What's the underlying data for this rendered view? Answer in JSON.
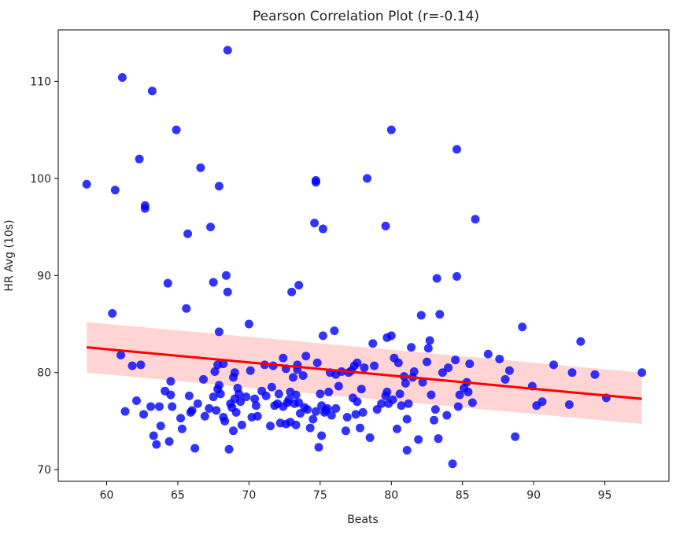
{
  "chart_data": {
    "type": "scatter",
    "title": "Pearson Correlation Plot (r=-0.14)",
    "xlabel": "Beats",
    "ylabel": "HR Avg (10s)",
    "xlim": [
      56.6,
      99.5
    ],
    "ylim": [
      68.8,
      115.3
    ],
    "xticks": [
      60,
      65,
      70,
      75,
      80,
      85,
      90,
      95
    ],
    "yticks": [
      70,
      80,
      90,
      100,
      110
    ],
    "grid": false,
    "legend": "none",
    "colors": {
      "points": "#0000ff",
      "fit_line": "#ff0000",
      "ci_band": "#ffcccc"
    },
    "regression": {
      "x": [
        58.6,
        97.6
      ],
      "y": [
        82.6,
        77.3
      ],
      "ci_upper": [
        85.2,
        80.0
      ],
      "ci_lower": [
        80.0,
        74.7
      ]
    },
    "points": [
      [
        58.6,
        99.4
      ],
      [
        60.4,
        86.1
      ],
      [
        60.6,
        98.8
      ],
      [
        61.0,
        81.8
      ],
      [
        61.1,
        110.4
      ],
      [
        61.3,
        76.0
      ],
      [
        61.8,
        80.7
      ],
      [
        62.1,
        77.1
      ],
      [
        62.3,
        102.0
      ],
      [
        62.4,
        80.8
      ],
      [
        62.6,
        75.7
      ],
      [
        62.7,
        97.2
      ],
      [
        62.7,
        96.9
      ],
      [
        63.1,
        76.5
      ],
      [
        63.2,
        109.0
      ],
      [
        63.3,
        73.5
      ],
      [
        63.5,
        72.6
      ],
      [
        63.7,
        76.5
      ],
      [
        63.8,
        74.5
      ],
      [
        64.1,
        78.1
      ],
      [
        64.3,
        89.2
      ],
      [
        64.4,
        72.9
      ],
      [
        64.5,
        79.1
      ],
      [
        64.5,
        77.7
      ],
      [
        64.6,
        76.5
      ],
      [
        64.9,
        105.0
      ],
      [
        65.2,
        75.3
      ],
      [
        65.3,
        74.2
      ],
      [
        65.6,
        86.6
      ],
      [
        65.7,
        94.3
      ],
      [
        65.8,
        77.6
      ],
      [
        65.9,
        75.9
      ],
      [
        66.0,
        76.1
      ],
      [
        66.2,
        72.2
      ],
      [
        66.4,
        76.8
      ],
      [
        66.6,
        101.1
      ],
      [
        66.8,
        79.3
      ],
      [
        66.9,
        75.5
      ],
      [
        67.2,
        76.3
      ],
      [
        67.3,
        95.0
      ],
      [
        67.5,
        89.3
      ],
      [
        67.5,
        77.5
      ],
      [
        67.6,
        80.1
      ],
      [
        67.7,
        76.1
      ],
      [
        67.8,
        78.3
      ],
      [
        67.8,
        80.8
      ],
      [
        67.9,
        84.2
      ],
      [
        67.9,
        78.7
      ],
      [
        67.9,
        99.2
      ],
      [
        68.0,
        77.8
      ],
      [
        68.2,
        80.9
      ],
      [
        68.2,
        75.4
      ],
      [
        68.3,
        75.0
      ],
      [
        68.4,
        90.0
      ],
      [
        68.5,
        88.3
      ],
      [
        68.5,
        113.2
      ],
      [
        68.6,
        72.1
      ],
      [
        68.7,
        76.8
      ],
      [
        68.8,
        76.4
      ],
      [
        68.9,
        74.0
      ],
      [
        68.9,
        79.5
      ],
      [
        69.0,
        77.3
      ],
      [
        69.0,
        80.0
      ],
      [
        69.1,
        75.9
      ],
      [
        69.2,
        78.4
      ],
      [
        69.3,
        77.8
      ],
      [
        69.4,
        77.0
      ],
      [
        69.5,
        74.6
      ],
      [
        69.8,
        77.5
      ],
      [
        70.0,
        85.0
      ],
      [
        70.1,
        80.2
      ],
      [
        70.2,
        75.4
      ],
      [
        70.4,
        77.3
      ],
      [
        70.5,
        76.6
      ],
      [
        70.6,
        75.5
      ],
      [
        70.9,
        78.1
      ],
      [
        71.1,
        80.8
      ],
      [
        71.2,
        77.6
      ],
      [
        71.5,
        74.5
      ],
      [
        71.6,
        78.5
      ],
      [
        71.7,
        80.7
      ],
      [
        71.8,
        76.6
      ],
      [
        72.0,
        76.8
      ],
      [
        72.1,
        77.8
      ],
      [
        72.2,
        74.8
      ],
      [
        72.4,
        81.5
      ],
      [
        72.4,
        76.5
      ],
      [
        72.6,
        80.4
      ],
      [
        72.6,
        74.7
      ],
      [
        72.7,
        76.9
      ],
      [
        72.8,
        77.2
      ],
      [
        72.9,
        78.0
      ],
      [
        72.9,
        74.9
      ],
      [
        73.0,
        88.3
      ],
      [
        73.1,
        79.5
      ],
      [
        73.2,
        76.8
      ],
      [
        73.3,
        77.7
      ],
      [
        73.3,
        74.6
      ],
      [
        73.4,
        80.3
      ],
      [
        73.4,
        80.8
      ],
      [
        73.5,
        89.0
      ],
      [
        73.5,
        76.9
      ],
      [
        73.6,
        75.8
      ],
      [
        73.8,
        79.7
      ],
      [
        73.9,
        76.4
      ],
      [
        74.0,
        81.7
      ],
      [
        74.1,
        76.2
      ],
      [
        74.3,
        74.3
      ],
      [
        74.5,
        75.2
      ],
      [
        74.6,
        95.4
      ],
      [
        74.7,
        76.0
      ],
      [
        74.7,
        99.8
      ],
      [
        74.7,
        99.6
      ],
      [
        74.8,
        81.0
      ],
      [
        74.9,
        72.3
      ],
      [
        75.0,
        77.8
      ],
      [
        75.1,
        76.6
      ],
      [
        75.1,
        73.5
      ],
      [
        75.2,
        83.8
      ],
      [
        75.2,
        94.8
      ],
      [
        75.3,
        75.9
      ],
      [
        75.4,
        76.1
      ],
      [
        75.5,
        76.3
      ],
      [
        75.6,
        78.0
      ],
      [
        75.7,
        80.0
      ],
      [
        75.8,
        75.6
      ],
      [
        76.0,
        84.3
      ],
      [
        76.1,
        76.3
      ],
      [
        76.1,
        79.8
      ],
      [
        76.3,
        78.6
      ],
      [
        76.5,
        80.1
      ],
      [
        76.8,
        74.0
      ],
      [
        76.9,
        75.4
      ],
      [
        77.0,
        80.0
      ],
      [
        77.2,
        80.2
      ],
      [
        77.3,
        77.4
      ],
      [
        77.4,
        80.7
      ],
      [
        77.5,
        75.7
      ],
      [
        77.6,
        81.0
      ],
      [
        77.6,
        77.0
      ],
      [
        77.8,
        74.3
      ],
      [
        77.9,
        78.3
      ],
      [
        78.0,
        75.9
      ],
      [
        78.1,
        80.5
      ],
      [
        78.3,
        100.0
      ],
      [
        78.5,
        73.3
      ],
      [
        78.7,
        83.0
      ],
      [
        78.8,
        80.7
      ],
      [
        79.0,
        76.2
      ],
      [
        79.3,
        76.8
      ],
      [
        79.6,
        95.1
      ],
      [
        79.6,
        77.6
      ],
      [
        79.7,
        83.6
      ],
      [
        79.7,
        78.0
      ],
      [
        79.8,
        76.8
      ],
      [
        80.0,
        105.0
      ],
      [
        80.0,
        83.8
      ],
      [
        80.1,
        77.2
      ],
      [
        80.2,
        81.5
      ],
      [
        80.4,
        74.2
      ],
      [
        80.5,
        81.0
      ],
      [
        80.6,
        77.8
      ],
      [
        80.7,
        76.6
      ],
      [
        80.9,
        79.6
      ],
      [
        81.0,
        78.9
      ],
      [
        81.1,
        72.0
      ],
      [
        81.1,
        75.2
      ],
      [
        81.2,
        76.8
      ],
      [
        81.4,
        82.6
      ],
      [
        81.5,
        79.5
      ],
      [
        81.6,
        80.1
      ],
      [
        81.9,
        73.1
      ],
      [
        82.1,
        85.9
      ],
      [
        82.2,
        79.0
      ],
      [
        82.5,
        81.1
      ],
      [
        82.6,
        82.5
      ],
      [
        82.7,
        83.3
      ],
      [
        82.8,
        77.7
      ],
      [
        83.0,
        75.1
      ],
      [
        83.1,
        76.2
      ],
      [
        83.2,
        89.7
      ],
      [
        83.3,
        73.2
      ],
      [
        83.4,
        86.0
      ],
      [
        83.6,
        80.0
      ],
      [
        83.9,
        75.6
      ],
      [
        84.0,
        80.5
      ],
      [
        84.3,
        70.6
      ],
      [
        84.5,
        81.3
      ],
      [
        84.6,
        89.9
      ],
      [
        84.6,
        103.0
      ],
      [
        84.7,
        76.5
      ],
      [
        84.8,
        77.7
      ],
      [
        85.1,
        78.4
      ],
      [
        85.3,
        79.0
      ],
      [
        85.4,
        78.0
      ],
      [
        85.5,
        80.9
      ],
      [
        85.7,
        76.9
      ],
      [
        85.9,
        95.8
      ],
      [
        86.8,
        81.9
      ],
      [
        87.6,
        81.4
      ],
      [
        88.0,
        79.3
      ],
      [
        88.3,
        80.2
      ],
      [
        88.7,
        73.4
      ],
      [
        89.2,
        84.7
      ],
      [
        89.9,
        78.6
      ],
      [
        90.2,
        76.6
      ],
      [
        90.6,
        77.0
      ],
      [
        91.4,
        80.8
      ],
      [
        92.5,
        76.7
      ],
      [
        92.7,
        80.0
      ],
      [
        93.3,
        83.2
      ],
      [
        94.3,
        79.8
      ],
      [
        95.1,
        77.4
      ],
      [
        97.6,
        80.0
      ]
    ]
  }
}
